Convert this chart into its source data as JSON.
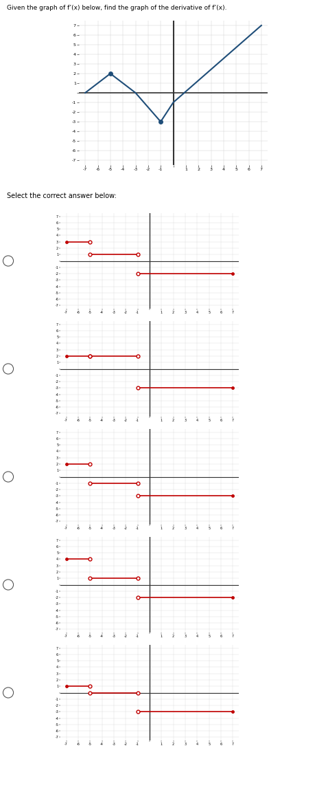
{
  "title_text": "Given the graph of f’(x) below, find the graph of the derivative of f’(x).",
  "select_text": "Select the correct answer below:",
  "fg_color": "#1f4e79",
  "line_color": "#c00000",
  "axis_color": "#333333",
  "grid_color": "#cccccc",
  "bg_color": "#ffffff",
  "sep_color": "#aaaaaa",
  "top_graph": {
    "xlim": [
      -7.5,
      7.5
    ],
    "ylim": [
      -7.5,
      7.5
    ],
    "points": [
      [
        -7,
        0
      ],
      [
        -5,
        2
      ],
      [
        -3,
        0
      ],
      [
        -1,
        -3
      ],
      [
        0,
        -1
      ],
      [
        7,
        7
      ]
    ],
    "dot_points": [
      [
        -5,
        2
      ],
      [
        -1,
        -3
      ]
    ]
  },
  "choices": [
    {
      "segments": [
        {
          "x": [
            -7,
            -5
          ],
          "y": 3,
          "left_open": false,
          "right_open": true
        },
        {
          "x": [
            -5,
            -1
          ],
          "y": 1,
          "left_open": true,
          "right_open": true
        },
        {
          "x": [
            -1,
            7
          ],
          "y": -2,
          "left_open": true,
          "right_open": false
        }
      ]
    },
    {
      "segments": [
        {
          "x": [
            -7,
            -5
          ],
          "y": 2,
          "left_open": false,
          "right_open": true
        },
        {
          "x": [
            -5,
            -1
          ],
          "y": 2,
          "left_open": true,
          "right_open": true
        },
        {
          "x": [
            -1,
            7
          ],
          "y": -3,
          "left_open": true,
          "right_open": false
        }
      ]
    },
    {
      "segments": [
        {
          "x": [
            -7,
            -5
          ],
          "y": 2,
          "left_open": false,
          "right_open": true
        },
        {
          "x": [
            -5,
            -1
          ],
          "y": -1,
          "left_open": true,
          "right_open": true
        },
        {
          "x": [
            -1,
            7
          ],
          "y": -3,
          "left_open": true,
          "right_open": false
        }
      ]
    },
    {
      "segments": [
        {
          "x": [
            -7,
            -5
          ],
          "y": 4,
          "left_open": false,
          "right_open": true
        },
        {
          "x": [
            -5,
            -1
          ],
          "y": 1,
          "left_open": true,
          "right_open": true
        },
        {
          "x": [
            -1,
            7
          ],
          "y": -2,
          "left_open": true,
          "right_open": false
        }
      ]
    },
    {
      "segments": [
        {
          "x": [
            -7,
            -5
          ],
          "y": 1,
          "left_open": false,
          "right_open": true
        },
        {
          "x": [
            -5,
            -1
          ],
          "y": 0,
          "left_open": true,
          "right_open": true
        },
        {
          "x": [
            -1,
            7
          ],
          "y": -3,
          "left_open": true,
          "right_open": false
        }
      ]
    }
  ]
}
